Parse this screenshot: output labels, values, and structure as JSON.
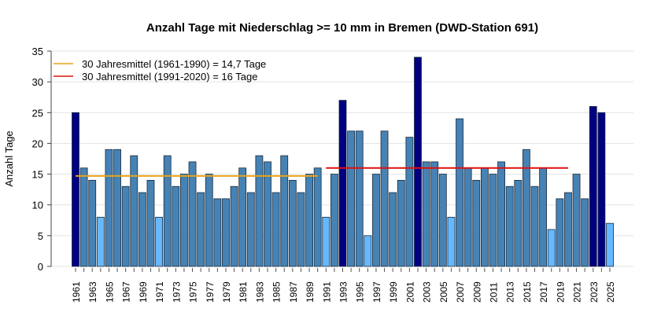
{
  "chart_data": {
    "type": "bar",
    "title": "Anzahl Tage mit Niederschlag >= 10 mm in Bremen (DWD-Station 691)",
    "xlabel": "",
    "ylabel": "Anzahl Tage",
    "ylim": [
      0,
      35
    ],
    "yticks": [
      0,
      5,
      10,
      15,
      20,
      25,
      30,
      35
    ],
    "grid": true,
    "legend_position": "top-left",
    "x": [
      1961,
      1962,
      1963,
      1964,
      1965,
      1966,
      1967,
      1968,
      1969,
      1970,
      1971,
      1972,
      1973,
      1974,
      1975,
      1976,
      1977,
      1978,
      1979,
      1980,
      1981,
      1982,
      1983,
      1984,
      1985,
      1986,
      1987,
      1988,
      1989,
      1990,
      1991,
      1992,
      1993,
      1994,
      1995,
      1996,
      1997,
      1998,
      1999,
      2000,
      2001,
      2002,
      2003,
      2004,
      2005,
      2006,
      2007,
      2008,
      2009,
      2010,
      2011,
      2012,
      2013,
      2014,
      2015,
      2016,
      2017,
      2018,
      2019,
      2020,
      2021,
      2022,
      2023,
      2024,
      2025
    ],
    "values": [
      25,
      16,
      14,
      8,
      19,
      19,
      13,
      18,
      12,
      14,
      8,
      18,
      13,
      15,
      17,
      12,
      15,
      11,
      11,
      13,
      16,
      12,
      18,
      17,
      12,
      18,
      14,
      12,
      15,
      16,
      8,
      15,
      27,
      22,
      22,
      5,
      15,
      22,
      12,
      14,
      21,
      34,
      17,
      17,
      15,
      8,
      24,
      16,
      14,
      16,
      15,
      17,
      13,
      14,
      19,
      13,
      16,
      6,
      11,
      12,
      15,
      11,
      26,
      25,
      7
    ],
    "bar_colors": {
      "high": "#000080",
      "normal": "#4682b4",
      "low": "#66b8ff"
    },
    "reference_lines": [
      {
        "name": "30 Jahresmittel (1961-1990) = 14,7 Tage",
        "value": 14.7,
        "from": 1961,
        "to": 1990,
        "color": "#e8a317"
      },
      {
        "name": "30 Jahresmittel (1991-2020) = 16 Tage",
        "value": 16,
        "from": 1991,
        "to": 2020,
        "color": "#dd1111"
      }
    ]
  }
}
